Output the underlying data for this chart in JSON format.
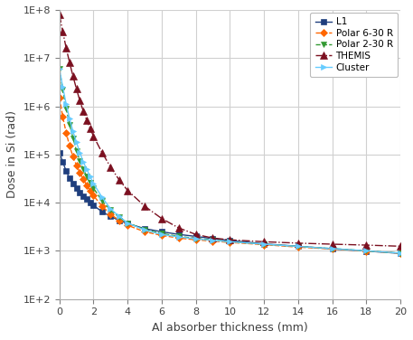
{
  "title": "",
  "xlabel": "Al absorber thickness (mm)",
  "ylabel": "Dose in Si (rad)",
  "xlim": [
    0,
    20
  ],
  "ylim_log": [
    2,
    8
  ],
  "series": {
    "L1": {
      "color": "#1F3E7D",
      "marker": "s",
      "linestyle": "-",
      "markersize": 4,
      "x": [
        0,
        0.2,
        0.4,
        0.6,
        0.8,
        1.0,
        1.2,
        1.4,
        1.6,
        1.8,
        2.0,
        2.5,
        3.0,
        3.5,
        4.0,
        5.0,
        6.0,
        7.0,
        8.0,
        9.0,
        10.0,
        12.0,
        14.0,
        16.0,
        18.0,
        20.0
      ],
      "y": [
        110000.0,
        70000.0,
        45000.0,
        32000.0,
        25000.0,
        20000.0,
        16500.0,
        13800.0,
        11800.0,
        10000.0,
        8800.0,
        6500.0,
        5200.0,
        4300.0,
        3700.0,
        2900.0,
        2500.0,
        2200.0,
        2000.0,
        1800.0,
        1650.0,
        1400.0,
        1250.0,
        1100.0,
        990,
        890
      ]
    },
    "Polar 6-30 R": {
      "color": "#FF6600",
      "marker": "D",
      "linestyle": "--",
      "markersize": 4,
      "x": [
        0,
        0.2,
        0.4,
        0.6,
        0.8,
        1.0,
        1.2,
        1.4,
        1.6,
        1.8,
        2.0,
        2.5,
        3.0,
        3.5,
        4.0,
        5.0,
        6.0,
        7.0,
        8.0,
        9.0,
        10.0,
        12.0,
        14.0,
        16.0,
        18.0,
        20.0
      ],
      "y": [
        1500000.0,
        600000.0,
        280000.0,
        150000.0,
        90000.0,
        60000.0,
        42000.0,
        31000.0,
        23000.0,
        18000.0,
        14000.0,
        8500.0,
        5800.0,
        4300.0,
        3400.0,
        2500.0,
        2100.0,
        1850.0,
        1700.0,
        1600.0,
        1500.0,
        1350.0,
        1200.0,
        1100.0,
        995,
        895
      ]
    },
    "Polar 2-30 R": {
      "color": "#339933",
      "marker": "v",
      "linestyle": "--",
      "markersize": 5,
      "x": [
        0,
        0.2,
        0.4,
        0.6,
        0.8,
        1.0,
        1.2,
        1.4,
        1.6,
        1.8,
        2.0,
        2.5,
        3.0,
        3.5,
        4.0,
        5.0,
        6.0,
        7.0,
        8.0,
        9.0,
        10.0,
        12.0,
        14.0,
        16.0,
        18.0,
        20.0
      ],
      "y": [
        6000000.0,
        2200000.0,
        900000.0,
        420000.0,
        220000.0,
        120000.0,
        75000.0,
        50000.0,
        35000.0,
        26000.0,
        20000.0,
        11000.0,
        7000.0,
        5000.0,
        3800.0,
        2800.0,
        2300.0,
        2000.0,
        1820.0,
        1680.0,
        1550.0,
        1380.0,
        1240.0,
        1120.0,
        1005,
        900
      ]
    },
    "THEMIS": {
      "color": "#7B1020",
      "marker": "^",
      "linestyle": "-.",
      "markersize": 6,
      "x": [
        0,
        0.2,
        0.4,
        0.6,
        0.8,
        1.0,
        1.2,
        1.4,
        1.6,
        1.8,
        2.0,
        2.5,
        3.0,
        3.5,
        4.0,
        5.0,
        6.0,
        7.0,
        8.0,
        9.0,
        10.0,
        12.0,
        14.0,
        16.0,
        18.0,
        20.0
      ],
      "y": [
        80000000.0,
        35000000.0,
        16000000.0,
        8000000.0,
        4200000.0,
        2300000.0,
        1300000.0,
        800000.0,
        520000.0,
        350000.0,
        240000.0,
        110000.0,
        55000.0,
        30000.0,
        18000.0,
        8500,
        4700,
        3000,
        2200,
        1850,
        1700,
        1550,
        1450,
        1380,
        1320,
        1250
      ]
    },
    "Cluster": {
      "color": "#66CCFF",
      "marker": ">",
      "linestyle": "-",
      "markersize": 5,
      "x": [
        0,
        0.2,
        0.4,
        0.6,
        0.8,
        1.0,
        1.2,
        1.4,
        1.6,
        1.8,
        2.0,
        2.5,
        3.0,
        3.5,
        4.0,
        5.0,
        6.0,
        7.0,
        8.0,
        9.0,
        10.0,
        12.0,
        14.0,
        16.0,
        18.0,
        20.0
      ],
      "y": [
        6000000.0,
        2500000.0,
        1100000.0,
        550000.0,
        300000.0,
        180000.0,
        110000.0,
        70000.0,
        50000.0,
        35000.0,
        25000.0,
        13000.0,
        7500.0,
        5200.0,
        3800.0,
        2700.0,
        2200.0,
        1950.0,
        1780.0,
        1650.0,
        1550.0,
        1380.0,
        1240.0,
        1120.0,
        1005,
        900
      ]
    }
  },
  "legend_order": [
    "L1",
    "Polar 6-30 R",
    "Polar 2-30 R",
    "THEMIS",
    "Cluster"
  ],
  "xticks": [
    0,
    2,
    4,
    6,
    8,
    10,
    12,
    14,
    16,
    18,
    20
  ],
  "background_color": "#FFFFFF",
  "grid_color": "#D0D0D0"
}
